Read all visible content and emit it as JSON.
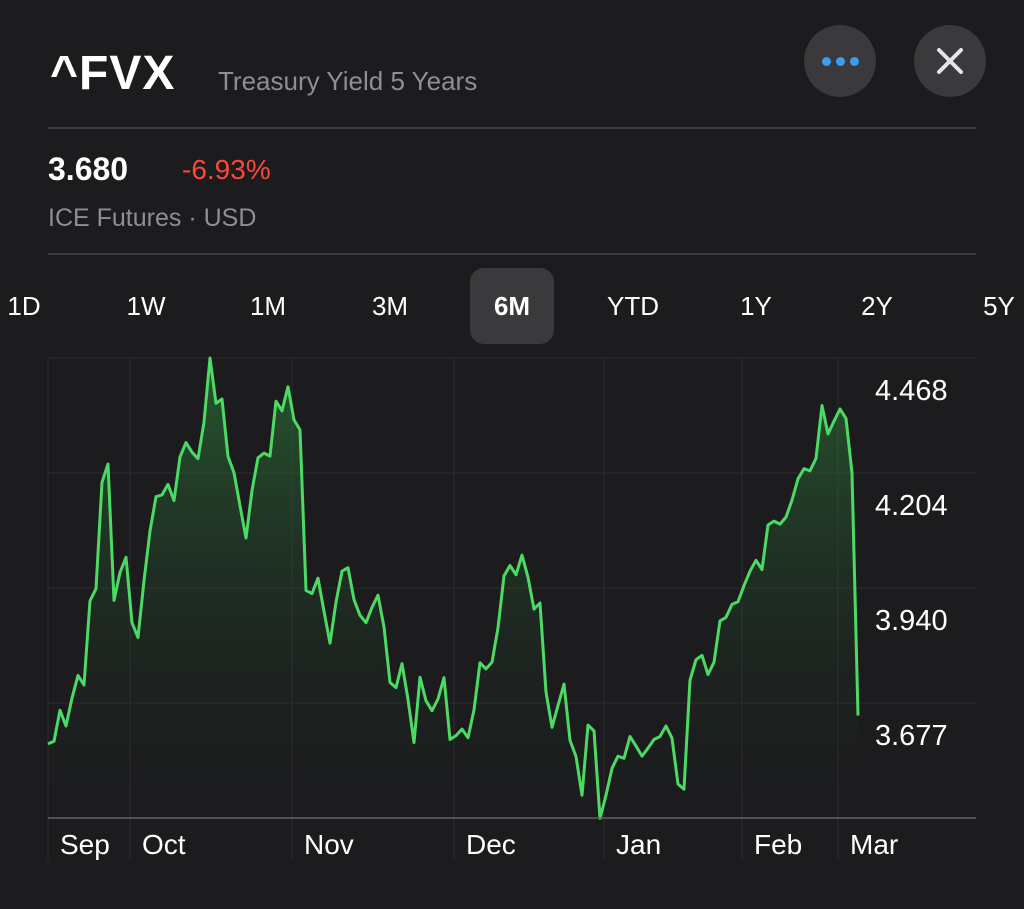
{
  "header": {
    "symbol": "^FVX",
    "name": "Treasury Yield 5 Years"
  },
  "buttons": {
    "more_icon": "ellipsis-icon",
    "close_icon": "close-icon"
  },
  "quote": {
    "price": "3.680",
    "change": "-6.93%",
    "exchange": "ICE Futures · USD"
  },
  "ranges": [
    {
      "label": "1D"
    },
    {
      "label": "1W"
    },
    {
      "label": "1M"
    },
    {
      "label": "3M"
    },
    {
      "label": "6M",
      "selected": true
    },
    {
      "label": "YTD"
    },
    {
      "label": "1Y"
    },
    {
      "label": "2Y"
    },
    {
      "label": "5Y"
    }
  ],
  "colors": {
    "accent": "#3b9cf4",
    "negative": "#ff453a",
    "line": "#4cd964"
  },
  "chart_data": {
    "type": "area",
    "months": [
      "Sep",
      "Oct",
      "Nov",
      "Dec",
      "Jan",
      "Feb",
      "Mar"
    ],
    "y_ticks": [
      "4.468",
      "4.204",
      "3.940",
      "3.677"
    ],
    "ylim": [
      3.485,
      4.54
    ],
    "grid": true,
    "values": [
      3.655,
      3.661,
      3.732,
      3.696,
      3.76,
      3.812,
      3.79,
      3.983,
      4.011,
      4.255,
      4.297,
      3.984,
      4.048,
      4.083,
      3.933,
      3.899,
      4.029,
      4.143,
      4.222,
      4.226,
      4.25,
      4.213,
      4.313,
      4.346,
      4.324,
      4.309,
      4.393,
      4.54,
      4.436,
      4.446,
      4.314,
      4.277,
      4.201,
      4.127,
      4.236,
      4.311,
      4.322,
      4.315,
      4.441,
      4.419,
      4.474,
      4.398,
      4.375,
      4.007,
      4.0,
      4.035,
      3.959,
      3.886,
      3.98,
      4.051,
      4.059,
      3.986,
      3.95,
      3.933,
      3.968,
      3.996,
      3.923,
      3.796,
      3.784,
      3.839,
      3.757,
      3.658,
      3.808,
      3.754,
      3.731,
      3.758,
      3.807,
      3.665,
      3.674,
      3.689,
      3.669,
      3.733,
      3.841,
      3.827,
      3.842,
      3.921,
      4.04,
      4.064,
      4.043,
      4.088,
      4.037,
      3.964,
      3.978,
      3.774,
      3.693,
      3.743,
      3.792,
      3.663,
      3.626,
      3.537,
      3.698,
      3.685,
      3.484,
      3.537,
      3.599,
      3.627,
      3.622,
      3.672,
      3.65,
      3.627,
      3.645,
      3.665,
      3.672,
      3.696,
      3.668,
      3.563,
      3.551,
      3.801,
      3.848,
      3.858,
      3.814,
      3.842,
      3.937,
      3.945,
      3.975,
      3.981,
      4.018,
      4.051,
      4.076,
      4.055,
      4.157,
      4.166,
      4.159,
      4.175,
      4.214,
      4.263,
      4.286,
      4.281,
      4.31,
      4.431,
      4.366,
      4.395,
      4.423,
      4.401,
      4.276,
      3.72
    ],
    "month_starts": [
      0,
      14,
      41,
      68,
      93,
      116,
      132
    ]
  }
}
